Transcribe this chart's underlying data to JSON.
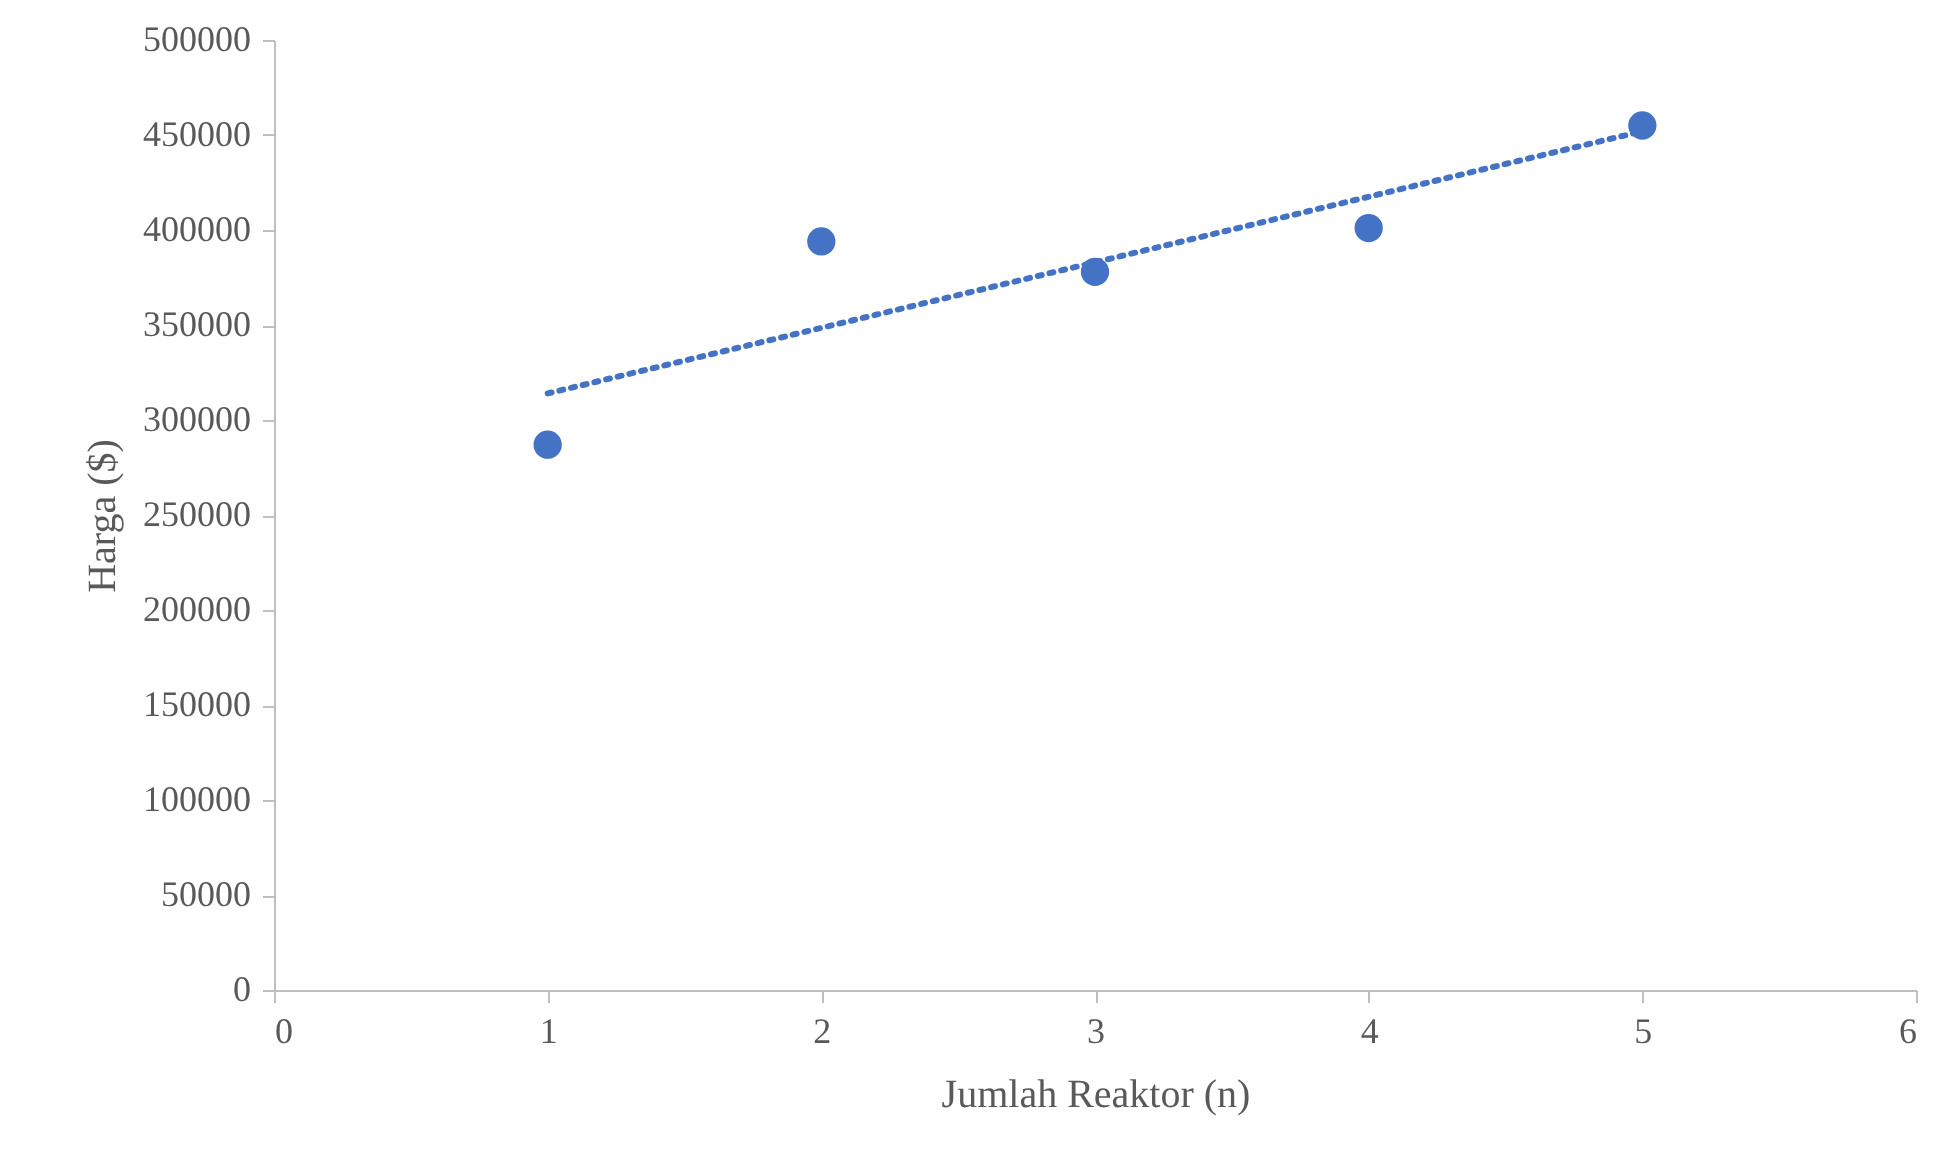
{
  "chart_data": {
    "type": "scatter",
    "xlabel": "Jumlah Reaktor (n)",
    "ylabel": "Harga ($)",
    "x": [
      1,
      2,
      3,
      4,
      5
    ],
    "series": [
      {
        "color": "#4472c4",
        "marker": "circle",
        "values": [
          287000,
          394000,
          378000,
          401000,
          455000
        ]
      },
      {
        "type": "line",
        "color": "#4472c4",
        "marker": "none",
        "line_style": "dotted",
        "x": [
          1,
          5
        ],
        "values": [
          314000,
          452000
        ]
      }
    ],
    "xlim": [
      0,
      6
    ],
    "xticks": [
      0,
      1,
      2,
      3,
      4,
      5,
      6
    ],
    "ylim": [
      0,
      500000
    ],
    "yticks": [
      0,
      50000,
      100000,
      150000,
      200000,
      250000,
      300000,
      350000,
      400000,
      450000,
      500000
    ],
    "grid": false
  }
}
